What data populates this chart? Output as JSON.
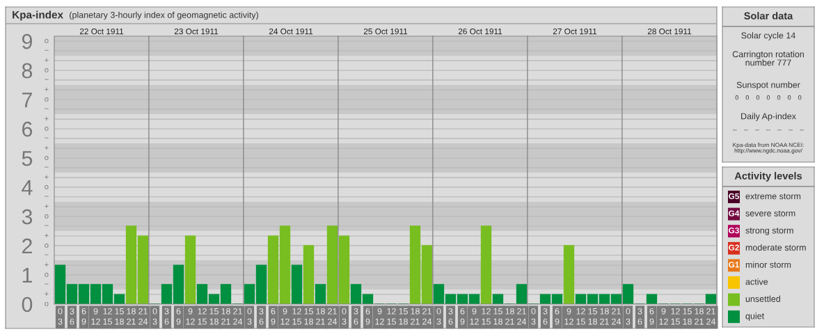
{
  "chart_data": [
    {
      "type": "other",
      "title": "Kpa-index",
      "subtitle": "(planetary 3-hourly index of geomagnetic activity)"
    },
    {
      "type": "bar",
      "title": "22 Oct 1911",
      "categories": [
        "0\n3",
        "3\n6",
        "6\n9",
        "9\n12",
        "12\n15",
        "15\n18",
        "18\n21",
        "21\n24"
      ],
      "values": [
        1.33,
        0.67,
        0.67,
        0.67,
        0.67,
        0.33,
        2.67,
        2.33
      ],
      "colors": [
        "#009040",
        "#009040",
        "#009040",
        "#009040",
        "#009040",
        "#009040",
        "#78be20",
        "#78be20"
      ],
      "ylim": [
        0,
        9.17
      ],
      "yticks": [
        0,
        {
          "value": 0.33,
          "label": null
        },
        {
          "value": 0.67,
          "label": null
        },
        1,
        {
          "value": 1.33,
          "label": null
        },
        {
          "value": 1.67,
          "label": null
        },
        2,
        {
          "value": 2.33,
          "label": null
        },
        {
          "value": 2.67,
          "label": null
        },
        3,
        {
          "value": 3.33,
          "label": null
        },
        {
          "value": 3.67,
          "label": null
        },
        4,
        {
          "value": 4.33,
          "label": null
        },
        {
          "value": 4.67,
          "label": null
        },
        5,
        {
          "value": 5.33,
          "label": null
        },
        {
          "value": 5.67,
          "label": null
        },
        6,
        {
          "value": 6.33,
          "label": null
        },
        {
          "value": 6.67,
          "label": null
        },
        7,
        {
          "value": 7.33,
          "label": null
        },
        {
          "value": 7.67,
          "label": null
        },
        8,
        {
          "value": 8.33,
          "label": null
        },
        {
          "value": 8.67,
          "label": null
        },
        9
      ],
      "annotations": [
        "o",
        "+",
        "−",
        "o",
        "+",
        "−",
        "o",
        "+",
        "−",
        "o",
        "+",
        "−",
        "o",
        "+",
        "−",
        "o",
        "+",
        "−",
        "o",
        "+",
        "−",
        "o",
        "+",
        "−",
        "o",
        "+",
        "−",
        "o"
      ],
      "grid": "y",
      "bands": [
        {
          "axis": "y",
          "from": 0.5,
          "to": 1.5,
          "color": "#c8c8c8"
        },
        {
          "axis": "y",
          "from": 2.5,
          "to": 3.5,
          "color": "#c8c8c8"
        },
        {
          "axis": "y",
          "from": 4.5,
          "to": 5.5,
          "color": "#c8c8c8"
        },
        {
          "axis": "y",
          "from": 6.5,
          "to": 7.5,
          "color": "#c8c8c8"
        },
        {
          "axis": "y",
          "from": 8.5,
          "to": 9.17,
          "color": "#c8c8c8"
        }
      ]
    },
    {
      "type": "bar",
      "title": "23 Oct 1911",
      "categories": [
        "0\n3",
        "3\n6",
        "6\n9",
        "9\n12",
        "12\n15",
        "15\n18",
        "18\n21",
        "21\n24"
      ],
      "values": [
        0,
        0.67,
        1.33,
        2.33,
        0.67,
        0.33,
        0.67,
        0
      ],
      "colors": [
        "#009040",
        "#009040",
        "#009040",
        "#78be20",
        "#009040",
        "#009040",
        "#009040",
        "#009040"
      ],
      "ylim": [
        0,
        9.17
      ],
      "tick_labels": "x",
      "yticks": [
        0,
        0.33,
        0.67,
        1,
        1.33,
        1.67,
        2,
        2.33,
        2.67,
        3,
        3.33,
        3.67,
        4,
        4.33,
        4.67,
        5,
        5.33,
        5.67,
        6,
        6.33,
        6.67,
        7,
        7.33,
        7.67,
        8,
        8.33,
        8.67,
        9
      ],
      "grid": "y",
      "bands": [
        {
          "axis": "y",
          "from": 0.5,
          "to": 1.5,
          "color": "#c8c8c8"
        },
        {
          "axis": "y",
          "from": 2.5,
          "to": 3.5,
          "color": "#c8c8c8"
        },
        {
          "axis": "y",
          "from": 4.5,
          "to": 5.5,
          "color": "#c8c8c8"
        },
        {
          "axis": "y",
          "from": 6.5,
          "to": 7.5,
          "color": "#c8c8c8"
        },
        {
          "axis": "y",
          "from": 8.5,
          "to": 9.17,
          "color": "#c8c8c8"
        }
      ]
    },
    {
      "type": "bar",
      "title": "24 Oct 1911",
      "categories": [
        "0\n3",
        "3\n6",
        "6\n9",
        "9\n12",
        "12\n15",
        "15\n18",
        "18\n21",
        "21\n24"
      ],
      "values": [
        0.67,
        1.33,
        2.33,
        2.67,
        1.33,
        2,
        0.67,
        2.67
      ],
      "colors": [
        "#009040",
        "#009040",
        "#78be20",
        "#78be20",
        "#009040",
        "#78be20",
        "#009040",
        "#78be20"
      ],
      "ylim": [
        0,
        9.17
      ],
      "tick_labels": "x",
      "yticks": [
        0,
        0.33,
        0.67,
        1,
        1.33,
        1.67,
        2,
        2.33,
        2.67,
        3,
        3.33,
        3.67,
        4,
        4.33,
        4.67,
        5,
        5.33,
        5.67,
        6,
        6.33,
        6.67,
        7,
        7.33,
        7.67,
        8,
        8.33,
        8.67,
        9
      ],
      "grid": "y",
      "bands": [
        {
          "axis": "y",
          "from": 0.5,
          "to": 1.5,
          "color": "#c8c8c8"
        },
        {
          "axis": "y",
          "from": 2.5,
          "to": 3.5,
          "color": "#c8c8c8"
        },
        {
          "axis": "y",
          "from": 4.5,
          "to": 5.5,
          "color": "#c8c8c8"
        },
        {
          "axis": "y",
          "from": 6.5,
          "to": 7.5,
          "color": "#c8c8c8"
        },
        {
          "axis": "y",
          "from": 8.5,
          "to": 9.17,
          "color": "#c8c8c8"
        }
      ]
    },
    {
      "type": "bar",
      "title": "25 Oct 1911",
      "categories": [
        "0\n3",
        "3\n6",
        "6\n9",
        "9\n12",
        "12\n15",
        "15\n18",
        "18\n21",
        "21\n24"
      ],
      "values": [
        2.33,
        0.67,
        0.33,
        0,
        0,
        0,
        2.67,
        2
      ],
      "colors": [
        "#78be20",
        "#009040",
        "#009040",
        "#009040",
        "#009040",
        "#009040",
        "#78be20",
        "#78be20"
      ],
      "ylim": [
        0,
        9.17
      ],
      "tick_labels": "x",
      "yticks": [
        0,
        0.33,
        0.67,
        1,
        1.33,
        1.67,
        2,
        2.33,
        2.67,
        3,
        3.33,
        3.67,
        4,
        4.33,
        4.67,
        5,
        5.33,
        5.67,
        6,
        6.33,
        6.67,
        7,
        7.33,
        7.67,
        8,
        8.33,
        8.67,
        9
      ],
      "grid": "y",
      "bands": [
        {
          "axis": "y",
          "from": 0.5,
          "to": 1.5,
          "color": "#c8c8c8"
        },
        {
          "axis": "y",
          "from": 2.5,
          "to": 3.5,
          "color": "#c8c8c8"
        },
        {
          "axis": "y",
          "from": 4.5,
          "to": 5.5,
          "color": "#c8c8c8"
        },
        {
          "axis": "y",
          "from": 6.5,
          "to": 7.5,
          "color": "#c8c8c8"
        },
        {
          "axis": "y",
          "from": 8.5,
          "to": 9.17,
          "color": "#c8c8c8"
        }
      ]
    },
    {
      "type": "bar",
      "title": "26 Oct 1911",
      "categories": [
        "0\n3",
        "3\n6",
        "6\n9",
        "9\n12",
        "12\n15",
        "15\n18",
        "18\n21",
        "21\n24"
      ],
      "values": [
        0.67,
        0.33,
        0.33,
        0.33,
        2.67,
        0.33,
        0,
        0.67
      ],
      "colors": [
        "#009040",
        "#009040",
        "#009040",
        "#009040",
        "#78be20",
        "#009040",
        "#009040",
        "#009040"
      ],
      "ylim": [
        0,
        9.17
      ],
      "tick_labels": "x",
      "yticks": [
        0,
        0.33,
        0.67,
        1,
        1.33,
        1.67,
        2,
        2.33,
        2.67,
        3,
        3.33,
        3.67,
        4,
        4.33,
        4.67,
        5,
        5.33,
        5.67,
        6,
        6.33,
        6.67,
        7,
        7.33,
        7.67,
        8,
        8.33,
        8.67,
        9
      ],
      "grid": "y",
      "bands": [
        {
          "axis": "y",
          "from": 0.5,
          "to": 1.5,
          "color": "#c8c8c8"
        },
        {
          "axis": "y",
          "from": 2.5,
          "to": 3.5,
          "color": "#c8c8c8"
        },
        {
          "axis": "y",
          "from": 4.5,
          "to": 5.5,
          "color": "#c8c8c8"
        },
        {
          "axis": "y",
          "from": 6.5,
          "to": 7.5,
          "color": "#c8c8c8"
        },
        {
          "axis": "y",
          "from": 8.5,
          "to": 9.17,
          "color": "#c8c8c8"
        }
      ]
    },
    {
      "type": "bar",
      "title": "27 Oct 1911",
      "categories": [
        "0\n3",
        "3\n6",
        "6\n9",
        "9\n12",
        "12\n15",
        "15\n18",
        "18\n21",
        "21\n24"
      ],
      "values": [
        0,
        0.33,
        0.33,
        2,
        0.33,
        0.33,
        0.33,
        0.33
      ],
      "colors": [
        "#009040",
        "#009040",
        "#009040",
        "#78be20",
        "#009040",
        "#009040",
        "#009040",
        "#009040"
      ],
      "ylim": [
        0,
        9.17
      ],
      "tick_labels": "x",
      "yticks": [
        0,
        0.33,
        0.67,
        1,
        1.33,
        1.67,
        2,
        2.33,
        2.67,
        3,
        3.33,
        3.67,
        4,
        4.33,
        4.67,
        5,
        5.33,
        5.67,
        6,
        6.33,
        6.67,
        7,
        7.33,
        7.67,
        8,
        8.33,
        8.67,
        9
      ],
      "grid": "y",
      "bands": [
        {
          "axis": "y",
          "from": 0.5,
          "to": 1.5,
          "color": "#c8c8c8"
        },
        {
          "axis": "y",
          "from": 2.5,
          "to": 3.5,
          "color": "#c8c8c8"
        },
        {
          "axis": "y",
          "from": 4.5,
          "to": 5.5,
          "color": "#c8c8c8"
        },
        {
          "axis": "y",
          "from": 6.5,
          "to": 7.5,
          "color": "#c8c8c8"
        },
        {
          "axis": "y",
          "from": 8.5,
          "to": 9.17,
          "color": "#c8c8c8"
        }
      ]
    },
    {
      "type": "bar",
      "title": "28 Oct 1911",
      "categories": [
        "0\n3",
        "3\n6",
        "6\n9",
        "9\n12",
        "12\n15",
        "15\n18",
        "18\n21",
        "21\n24"
      ],
      "values": [
        0.67,
        0,
        0.33,
        0,
        0,
        0,
        0,
        0.33
      ],
      "colors": [
        "#009040",
        "#009040",
        "#009040",
        "#009040",
        "#009040",
        "#009040",
        "#009040",
        "#009040"
      ],
      "ylim": [
        0,
        9.17
      ],
      "tick_labels": "x",
      "yticks": [
        0,
        0.33,
        0.67,
        1,
        1.33,
        1.67,
        2,
        2.33,
        2.67,
        3,
        3.33,
        3.67,
        4,
        4.33,
        4.67,
        5,
        5.33,
        5.67,
        6,
        6.33,
        6.67,
        7,
        7.33,
        7.67,
        8,
        8.33,
        8.67,
        9
      ],
      "grid": "y",
      "bands": [
        {
          "axis": "y",
          "from": 0.5,
          "to": 1.5,
          "color": "#c8c8c8"
        },
        {
          "axis": "y",
          "from": 2.5,
          "to": 3.5,
          "color": "#c8c8c8"
        },
        {
          "axis": "y",
          "from": 4.5,
          "to": 5.5,
          "color": "#c8c8c8"
        },
        {
          "axis": "y",
          "from": 6.5,
          "to": 7.5,
          "color": "#c8c8c8"
        },
        {
          "axis": "y",
          "from": 8.5,
          "to": 9.17,
          "color": "#c8c8c8"
        }
      ]
    },
    {
      "type": "other",
      "title": "Solar data",
      "annotations": [
        "Solar cycle 14",
        "Carrington rotation\nnumber 777",
        "Sunspot number",
        "0    0    0    0    0    0    0",
        "Daily Ap-index",
        "--    --    --    --    --    --    --",
        "Kpa-data from NOAA NCEI:\nhttp://www.ngdc.noaa.gov/"
      ]
    },
    {
      "type": "other",
      "title": "Activity levels",
      "categories": [
        "extreme storm",
        "severe storm",
        "strong storm",
        "moderate storm",
        "minor storm",
        "active",
        "unsettled",
        "quiet"
      ],
      "colors": [
        "#4a0026",
        "#740a40",
        "#b0005a",
        "#d8301e",
        "#e87818",
        "#f8c400",
        "#78be20",
        "#009040"
      ],
      "annotations": [
        "G5",
        "G4",
        "G3",
        "G2",
        "G1"
      ]
    }
  ]
}
